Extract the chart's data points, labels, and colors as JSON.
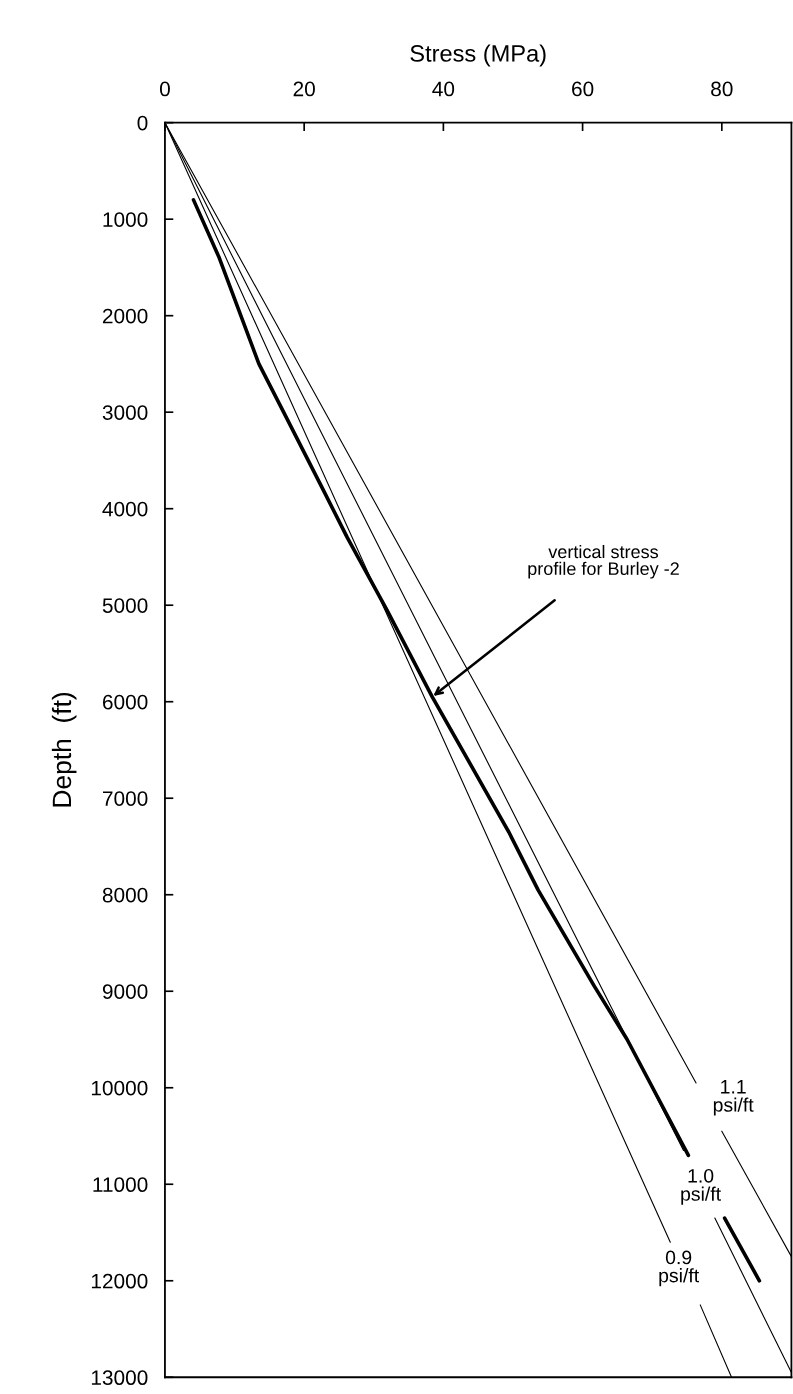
{
  "chart_data": {
    "type": "line",
    "xlabel": "Stress (MPa)",
    "ylabel": "Depth  (ft)",
    "xlim": [
      0,
      90
    ],
    "xticks": [
      0,
      20,
      40,
      60,
      80
    ],
    "ylim": [
      13000,
      0
    ],
    "yticks": [
      0,
      1000,
      2000,
      3000,
      4000,
      5000,
      6000,
      7000,
      8000,
      9000,
      10000,
      11000,
      12000,
      13000
    ],
    "grid": false,
    "legend": false,
    "marker": "none",
    "line_style": "solid",
    "series": [
      {
        "color": "#000000",
        "x": [
          4.1,
          7.8,
          13.5,
          16.7,
          22.7,
          26.2,
          31.9,
          38.4,
          49.4,
          53.6,
          61.7,
          66.4,
          75.2,
          null,
          80.4,
          85.4
        ],
        "values": [
          800,
          1400,
          2500,
          2950,
          3800,
          4300,
          5050,
          5950,
          7350,
          7950,
          8950,
          9500,
          10700,
          null,
          11350,
          12000
        ]
      },
      {
        "color": "#000000",
        "x": [
          0,
          72.6,
          null,
          76.9,
          81.4
        ],
        "values": [
          0,
          11600,
          null,
          12250,
          13000
        ]
      },
      {
        "color": "#000000",
        "x": [
          0,
          74.5,
          null,
          79.0,
          90
        ],
        "values": [
          0,
          10650,
          null,
          11350,
          12950
        ]
      },
      {
        "color": "#000000",
        "x": [
          0,
          76.3,
          null,
          80.0,
          90
        ],
        "values": [
          0,
          9950,
          null,
          10450,
          11750
        ]
      }
    ],
    "annotations": [
      {
        "text": "vertical stress\nprofile for Burley -2",
        "x": 38.4,
        "y": 5950
      },
      "1.1\npsi/ft",
      "1.0\npsi/ft",
      "0.9\npsi/ft"
    ]
  }
}
